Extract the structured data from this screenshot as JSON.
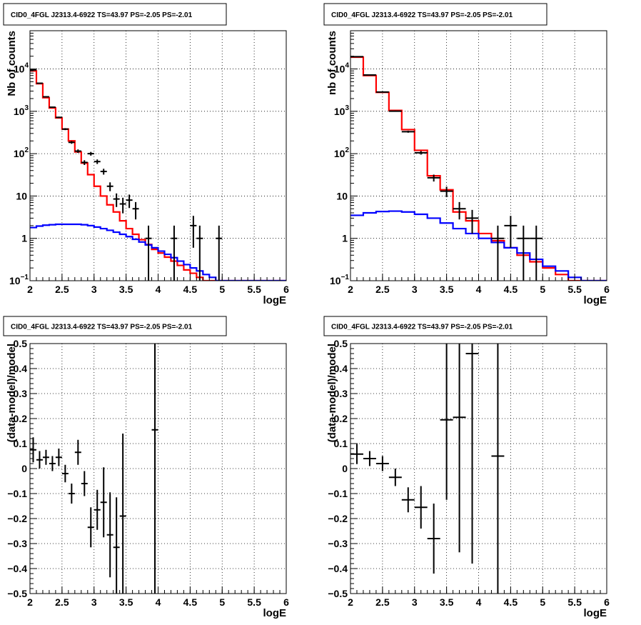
{
  "chart_data": [
    {
      "type": "histogram",
      "title": "CID0_4FGL J2313.4-6922 TS=43.97 PS=-2.05 PS=-2.01",
      "xlabel": "logE",
      "ylabel": "Nb of counts",
      "xlim": [
        2,
        6
      ],
      "ylim": [
        0.1,
        80000
      ],
      "ylog": true,
      "grid": true,
      "xticks": [
        "2",
        "2.5",
        "3",
        "3.5",
        "4",
        "4.5",
        "5",
        "5.5",
        "6"
      ],
      "yticks": [
        {
          "v": 0.1,
          "label": "10",
          "sup": "−1"
        },
        {
          "v": 1,
          "label": "1",
          "sup": ""
        },
        {
          "v": 10,
          "label": "10",
          "sup": ""
        },
        {
          "v": 100,
          "label": "10",
          "sup": "2"
        },
        {
          "v": 1000,
          "label": "10",
          "sup": "3"
        },
        {
          "v": 10000,
          "label": "10",
          "sup": "4"
        }
      ],
      "bin_edges": [
        2.0,
        2.1,
        2.2,
        2.3,
        2.4,
        2.5,
        2.6,
        2.7,
        2.8,
        2.9,
        3.0,
        3.1,
        3.2,
        3.3,
        3.4,
        3.5,
        3.6,
        3.7,
        3.8,
        3.9,
        4.0,
        4.1,
        4.2,
        4.3,
        4.4,
        4.5,
        4.6,
        4.7,
        4.8,
        4.9,
        5.0,
        5.1,
        5.2,
        5.3,
        5.4,
        5.5,
        5.6,
        5.7,
        5.8,
        5.9,
        6.0
      ],
      "series": [
        {
          "name": "",
          "color": "#ff0000",
          "style": "step",
          "values": [
            9000,
            4500,
            2100,
            1200,
            700,
            380,
            200,
            110,
            60,
            32,
            17,
            10,
            6.2,
            4.2,
            2.6,
            1.7,
            1.25,
            0.93,
            0.72,
            0.55,
            0.45,
            0.36,
            0.29,
            0.23,
            0.18,
            0.15,
            0.12,
            0.1,
            0.1,
            0.1,
            0.1,
            0.1,
            0.1,
            0.1,
            0.1,
            0.1,
            0.1,
            0.1,
            0.1,
            0.1
          ]
        },
        {
          "name": "",
          "color": "#0000ff",
          "style": "step",
          "values": [
            1.8,
            1.95,
            2.05,
            2.1,
            2.15,
            2.15,
            2.15,
            2.15,
            2.1,
            2.0,
            1.85,
            1.7,
            1.55,
            1.4,
            1.25,
            1.1,
            0.95,
            0.82,
            0.7,
            0.6,
            0.5,
            0.42,
            0.35,
            0.29,
            0.24,
            0.2,
            0.17,
            0.14,
            0.12,
            0.1,
            0.1,
            0.1,
            0.1,
            0.1,
            0.1,
            0.1,
            0.1,
            0.1,
            0.1,
            0.1
          ]
        },
        {
          "name": "",
          "color": "#000000",
          "style": "errorbar",
          "points": [
            {
              "x": 2.05,
              "y": 9500,
              "err": 100
            },
            {
              "x": 2.15,
              "y": 4600,
              "err": 70
            },
            {
              "x": 2.25,
              "y": 2200,
              "err": 50
            },
            {
              "x": 2.35,
              "y": 1250,
              "err": 35
            },
            {
              "x": 2.45,
              "y": 720,
              "err": 27
            },
            {
              "x": 2.55,
              "y": 380,
              "err": 20
            },
            {
              "x": 2.65,
              "y": 185,
              "err": 14
            },
            {
              "x": 2.75,
              "y": 115,
              "err": 11
            },
            {
              "x": 2.85,
              "y": 62,
              "err": 8
            },
            {
              "x": 2.95,
              "y": 100,
              "err": 10
            },
            {
              "x": 3.05,
              "y": 65,
              "err": 8
            },
            {
              "x": 3.15,
              "y": 38,
              "err": 6
            },
            {
              "x": 3.25,
              "y": 17,
              "err": 4
            },
            {
              "x": 3.35,
              "y": 8.5,
              "err": 3
            },
            {
              "x": 3.45,
              "y": 6.5,
              "err": 2.6
            },
            {
              "x": 3.55,
              "y": 8,
              "err": 2.8
            },
            {
              "x": 3.65,
              "y": 5,
              "err": 2.2
            },
            {
              "x": 3.85,
              "y": 1,
              "err": 1
            },
            {
              "x": 4.25,
              "y": 1,
              "err": 1
            },
            {
              "x": 4.55,
              "y": 2,
              "err": 1.4
            },
            {
              "x": 4.65,
              "y": 1,
              "err": 1
            },
            {
              "x": 4.95,
              "y": 1,
              "err": 1
            }
          ]
        }
      ]
    },
    {
      "type": "histogram",
      "title": "CID0_4FGL J2313.4-6922 TS=43.97 PS=-2.05 PS=-2.01",
      "xlabel": "logE",
      "ylabel": "nb of counts",
      "xlim": [
        2,
        6
      ],
      "ylim": [
        0.1,
        80000
      ],
      "ylog": true,
      "grid": true,
      "xticks": [
        "2",
        "2.5",
        "3",
        "3.5",
        "4",
        "4.5",
        "5",
        "5.5",
        "6"
      ],
      "yticks": [
        {
          "v": 0.1,
          "label": "10",
          "sup": "−1"
        },
        {
          "v": 1,
          "label": "1",
          "sup": ""
        },
        {
          "v": 10,
          "label": "10",
          "sup": ""
        },
        {
          "v": 100,
          "label": "10",
          "sup": "2"
        },
        {
          "v": 1000,
          "label": "10",
          "sup": "3"
        },
        {
          "v": 10000,
          "label": "10",
          "sup": "4"
        }
      ],
      "bin_edges": [
        2.0,
        2.2,
        2.4,
        2.6,
        2.8,
        3.0,
        3.2,
        3.4,
        3.6,
        3.8,
        4.0,
        4.2,
        4.4,
        4.6,
        4.8,
        5.0,
        5.2,
        5.4,
        5.6,
        5.8,
        6.0
      ],
      "series": [
        {
          "name": "",
          "color": "#ff0000",
          "style": "step",
          "values": [
            19000,
            7000,
            2800,
            1050,
            370,
            120,
            30,
            14,
            4.2,
            2.6,
            1.3,
            0.88,
            0.6,
            0.4,
            0.28,
            0.2,
            0.14,
            0.1,
            0.1,
            0.1
          ]
        },
        {
          "name": "",
          "color": "#0000ff",
          "style": "step",
          "values": [
            3.5,
            4.0,
            4.3,
            4.4,
            4.2,
            3.7,
            3.0,
            2.3,
            1.7,
            1.3,
            1.0,
            0.8,
            0.6,
            0.45,
            0.32,
            0.22,
            0.17,
            0.12,
            0.1,
            0.1
          ]
        },
        {
          "name": "",
          "color": "#000000",
          "style": "errorbar",
          "points": [
            {
              "x": 2.1,
              "y": 19500,
              "err": 140
            },
            {
              "x": 2.3,
              "y": 7200,
              "err": 85
            },
            {
              "x": 2.5,
              "y": 2850,
              "err": 53
            },
            {
              "x": 2.7,
              "y": 1010,
              "err": 32
            },
            {
              "x": 2.9,
              "y": 330,
              "err": 18
            },
            {
              "x": 3.1,
              "y": 105,
              "err": 10
            },
            {
              "x": 3.3,
              "y": 27,
              "err": 5
            },
            {
              "x": 3.5,
              "y": 13,
              "err": 3.6
            },
            {
              "x": 3.7,
              "y": 5,
              "err": 2.2
            },
            {
              "x": 3.9,
              "y": 3,
              "err": 1.7
            },
            {
              "x": 4.3,
              "y": 1,
              "err": 1
            },
            {
              "x": 4.5,
              "y": 2,
              "err": 1.4
            },
            {
              "x": 4.7,
              "y": 1,
              "err": 1
            },
            {
              "x": 4.9,
              "y": 1,
              "err": 1
            }
          ]
        }
      ]
    },
    {
      "type": "scatter",
      "title": "CID0_4FGL J2313.4-6922 TS=43.97 PS=-2.05 PS=-2.01",
      "xlabel": "logE",
      "ylabel": "(data-model)/model",
      "xlim": [
        2,
        6
      ],
      "ylim": [
        -0.5,
        0.5
      ],
      "ylog": false,
      "grid": true,
      "xticks": [
        "2",
        "2.5",
        "3",
        "3.5",
        "4",
        "4.5",
        "5",
        "5.5",
        "6"
      ],
      "yticks": [
        {
          "v": -0.5,
          "label": "−0.5"
        },
        {
          "v": -0.4,
          "label": "−0.4"
        },
        {
          "v": -0.3,
          "label": "−0.3"
        },
        {
          "v": -0.2,
          "label": "−0.2"
        },
        {
          "v": -0.1,
          "label": "−0.1"
        },
        {
          "v": 0,
          "label": "0"
        },
        {
          "v": 0.1,
          "label": "0.1"
        },
        {
          "v": 0.2,
          "label": "0.2"
        },
        {
          "v": 0.3,
          "label": "0.3"
        },
        {
          "v": 0.4,
          "label": "0.4"
        },
        {
          "v": 0.5,
          "label": "0.5"
        }
      ],
      "series": [
        {
          "name": "",
          "color": "#000000",
          "style": "errorbar",
          "xerr": 0.05,
          "points": [
            {
              "x": 2.05,
              "y": 0.075,
              "err": 0.05
            },
            {
              "x": 2.15,
              "y": 0.035,
              "err": 0.035
            },
            {
              "x": 2.25,
              "y": 0.045,
              "err": 0.03
            },
            {
              "x": 2.35,
              "y": 0.02,
              "err": 0.03
            },
            {
              "x": 2.45,
              "y": 0.045,
              "err": 0.035
            },
            {
              "x": 2.55,
              "y": -0.02,
              "err": 0.035
            },
            {
              "x": 2.65,
              "y": -0.1,
              "err": 0.04
            },
            {
              "x": 2.75,
              "y": 0.065,
              "err": 0.05
            },
            {
              "x": 2.85,
              "y": -0.06,
              "err": 0.05
            },
            {
              "x": 2.95,
              "y": -0.235,
              "err": 0.08
            },
            {
              "x": 3.05,
              "y": -0.165,
              "err": 0.08
            },
            {
              "x": 3.15,
              "y": -0.135,
              "err": 0.14
            },
            {
              "x": 3.25,
              "y": -0.265,
              "err": 0.17
            },
            {
              "x": 3.35,
              "y": -0.315,
              "err": 0.2
            },
            {
              "x": 3.45,
              "y": -0.19,
              "err": 0.33
            },
            {
              "x": 3.95,
              "y": 0.155,
              "err": 1.0
            }
          ]
        }
      ]
    },
    {
      "type": "scatter",
      "title": "CID0_4FGL J2313.4-6922 TS=43.97 PS=-2.05 PS=-2.01",
      "xlabel": "logE",
      "ylabel": "(data-model)/model",
      "xlim": [
        2,
        6
      ],
      "ylim": [
        -0.5,
        0.5
      ],
      "ylog": false,
      "grid": true,
      "xticks": [
        "2",
        "2.5",
        "3",
        "3.5",
        "4",
        "4.5",
        "5",
        "5.5",
        "6"
      ],
      "yticks": [
        {
          "v": -0.5,
          "label": "−0.5"
        },
        {
          "v": -0.4,
          "label": "−0.4"
        },
        {
          "v": -0.3,
          "label": "−0.3"
        },
        {
          "v": -0.2,
          "label": "−0.2"
        },
        {
          "v": -0.1,
          "label": "−0.1"
        },
        {
          "v": 0,
          "label": "0"
        },
        {
          "v": 0.1,
          "label": "0.1"
        },
        {
          "v": 0.2,
          "label": "0.2"
        },
        {
          "v": 0.3,
          "label": "0.3"
        },
        {
          "v": 0.4,
          "label": "0.4"
        },
        {
          "v": 0.5,
          "label": "0.5"
        }
      ],
      "series": [
        {
          "name": "",
          "color": "#000000",
          "style": "errorbar",
          "xerr": 0.1,
          "points": [
            {
              "x": 2.1,
              "y": 0.058,
              "err": 0.04
            },
            {
              "x": 2.3,
              "y": 0.04,
              "err": 0.03
            },
            {
              "x": 2.5,
              "y": 0.02,
              "err": 0.03
            },
            {
              "x": 2.7,
              "y": -0.035,
              "err": 0.035
            },
            {
              "x": 2.9,
              "y": -0.125,
              "err": 0.05
            },
            {
              "x": 3.1,
              "y": -0.155,
              "err": 0.085
            },
            {
              "x": 3.3,
              "y": -0.28,
              "err": 0.14
            },
            {
              "x": 3.5,
              "y": 0.195,
              "err": 0.32
            },
            {
              "x": 3.7,
              "y": 0.205,
              "err": 0.54
            },
            {
              "x": 3.9,
              "y": 0.46,
              "err": 0.84
            },
            {
              "x": 4.3,
              "y": 0.05,
              "err": 1.0
            }
          ]
        }
      ]
    }
  ]
}
